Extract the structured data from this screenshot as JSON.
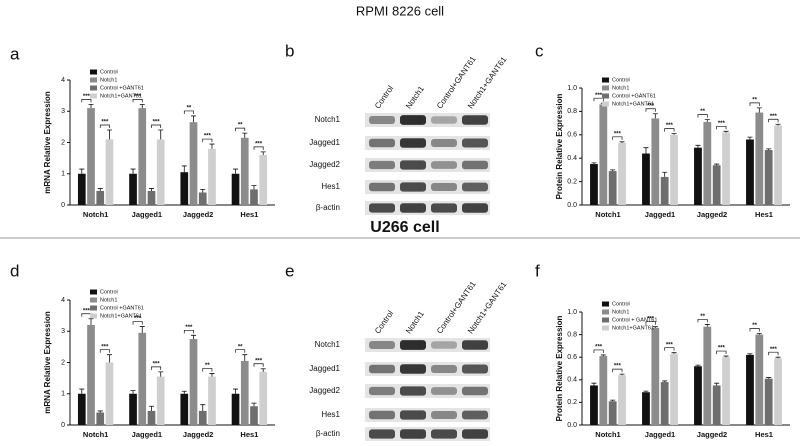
{
  "figure": {
    "title": "RPMI 8226 cell",
    "caption": "U266 cell",
    "blots": [
      {
        "panel": "b",
        "lanes": [
          "Control",
          "Notch1",
          "Control+GANT61",
          "Notch1+GANT61"
        ],
        "rows": [
          "Notch1",
          "Jagged1",
          "Jagged2",
          "Hes1",
          "β-actin"
        ]
      },
      {
        "panel": "e",
        "lanes": [
          "Control",
          "Notch1",
          "Control+GANT61",
          "Notch1+GANT61"
        ],
        "rows": [
          "Notch1",
          "Jagged1",
          "Jagged2",
          "Hes1",
          "β-actin"
        ]
      }
    ]
  },
  "chart_data": [
    {
      "type": "bar",
      "panel": "a",
      "ylabel": "mRNA Relative Expression",
      "categories": [
        "Notch1",
        "Jagged1",
        "Jagged2",
        "Hes1"
      ],
      "series": [
        {
          "name": "Control",
          "color": "#111111",
          "values": [
            1.0,
            1.0,
            1.05,
            1.0
          ],
          "errors": [
            0.15,
            0.15,
            0.2,
            0.15
          ]
        },
        {
          "name": "Notch1",
          "color": "#8c8c8c",
          "values": [
            3.1,
            3.1,
            2.65,
            2.15
          ],
          "errors": [
            0.12,
            0.12,
            0.2,
            0.15
          ]
        },
        {
          "name": "Control +GANT61",
          "color": "#6e6e6e",
          "values": [
            0.45,
            0.45,
            0.4,
            0.5
          ],
          "errors": [
            0.08,
            0.08,
            0.1,
            0.12
          ]
        },
        {
          "name": "Notch1+GANT61",
          "color": "#cfcfcf",
          "values": [
            2.1,
            2.1,
            1.8,
            1.6
          ],
          "errors": [
            0.3,
            0.3,
            0.15,
            0.1
          ]
        }
      ],
      "significance": [
        [
          "***",
          "***"
        ],
        [
          "***",
          "***"
        ],
        [
          "**",
          "***"
        ],
        [
          "**",
          "***"
        ]
      ],
      "ylim": [
        0,
        4
      ],
      "yticks": [
        0,
        1,
        2,
        3,
        4
      ]
    },
    {
      "type": "bar",
      "panel": "c",
      "ylabel": "Protein Relative Expression",
      "categories": [
        "Notch1",
        "Jagged1",
        "Jagged2",
        "Hes1"
      ],
      "series": [
        {
          "name": "Control",
          "color": "#111111",
          "values": [
            0.35,
            0.44,
            0.49,
            0.56
          ],
          "errors": [
            0.01,
            0.05,
            0.02,
            0.02
          ]
        },
        {
          "name": "Notch1",
          "color": "#8c8c8c",
          "values": [
            0.86,
            0.74,
            0.71,
            0.79
          ],
          "errors": [
            0.01,
            0.04,
            0.02,
            0.04
          ]
        },
        {
          "name": "Control +GANT61",
          "color": "#6e6e6e",
          "values": [
            0.29,
            0.24,
            0.34,
            0.47
          ],
          "errors": [
            0.01,
            0.04,
            0.01,
            0.01
          ]
        },
        {
          "name": "Notch1+GANT61",
          "color": "#cfcfcf",
          "values": [
            0.53,
            0.6,
            0.62,
            0.68
          ],
          "errors": [
            0.01,
            0.01,
            0.01,
            0.01
          ]
        }
      ],
      "significance": [
        [
          "***",
          "***"
        ],
        [
          "***",
          "***"
        ],
        [
          "**",
          "***"
        ],
        [
          "**",
          "***"
        ]
      ],
      "ylim": [
        0,
        1
      ],
      "yticks": [
        {
          "value": 0,
          "label": "0.0"
        },
        0.2,
        0.4,
        0.6,
        0.8,
        {
          "value": 1,
          "label": "1.0"
        }
      ]
    },
    {
      "type": "bar",
      "panel": "d",
      "ylabel": "mRNA Relative Expression",
      "categories": [
        "Notch1",
        "Jagged1",
        "Jagged2",
        "Hes1"
      ],
      "series": [
        {
          "name": "Control",
          "color": "#111111",
          "values": [
            1.0,
            1.0,
            1.0,
            1.0
          ],
          "errors": [
            0.15,
            0.1,
            0.08,
            0.15
          ]
        },
        {
          "name": "Notch1",
          "color": "#8c8c8c",
          "values": [
            3.2,
            2.95,
            2.75,
            2.05
          ],
          "errors": [
            0.2,
            0.2,
            0.12,
            0.2
          ]
        },
        {
          "name": "Control +GANT61",
          "color": "#6e6e6e",
          "values": [
            0.4,
            0.45,
            0.45,
            0.6
          ],
          "errors": [
            0.05,
            0.15,
            0.2,
            0.1
          ]
        },
        {
          "name": "Notch1+GANT61",
          "color": "#cfcfcf",
          "values": [
            2.0,
            1.55,
            1.55,
            1.7
          ],
          "errors": [
            0.25,
            0.15,
            0.1,
            0.1
          ]
        }
      ],
      "significance": [
        [
          "***",
          "***"
        ],
        [
          "***",
          "***"
        ],
        [
          "***",
          "**"
        ],
        [
          "**",
          "***"
        ]
      ],
      "ylim": [
        0,
        4
      ],
      "yticks": [
        0,
        1,
        2,
        3,
        4
      ]
    },
    {
      "type": "bar",
      "panel": "f",
      "ylabel": "Protein Relative Expression",
      "categories": [
        "Notch1",
        "Jagged1",
        "Jagged2",
        "Hes1"
      ],
      "series": [
        {
          "name": "Control",
          "color": "#111111",
          "values": [
            0.35,
            0.29,
            0.52,
            0.62
          ],
          "errors": [
            0.02,
            0.01,
            0.01,
            0.01
          ]
        },
        {
          "name": "Notch1",
          "color": "#8c8c8c",
          "values": [
            0.61,
            0.86,
            0.87,
            0.8
          ],
          "errors": [
            0.01,
            0.01,
            0.02,
            0.01
          ]
        },
        {
          "name": "Control + GANT61",
          "color": "#6e6e6e",
          "values": [
            0.21,
            0.38,
            0.35,
            0.41
          ],
          "errors": [
            0.01,
            0.01,
            0.02,
            0.01
          ]
        },
        {
          "name": "Notch1+GANT61",
          "color": "#cfcfcf",
          "values": [
            0.44,
            0.63,
            0.6,
            0.59
          ],
          "errors": [
            0.01,
            0.01,
            0.01,
            0.01
          ]
        }
      ],
      "significance": [
        [
          "***",
          "***"
        ],
        [
          "***",
          "***"
        ],
        [
          "**",
          "***"
        ],
        [
          "**",
          "***"
        ]
      ],
      "ylim": [
        0,
        1
      ],
      "yticks": [
        {
          "value": 0,
          "label": "0.0"
        },
        0.2,
        0.4,
        0.6,
        0.8,
        {
          "value": 1,
          "label": "1.0"
        }
      ]
    }
  ]
}
